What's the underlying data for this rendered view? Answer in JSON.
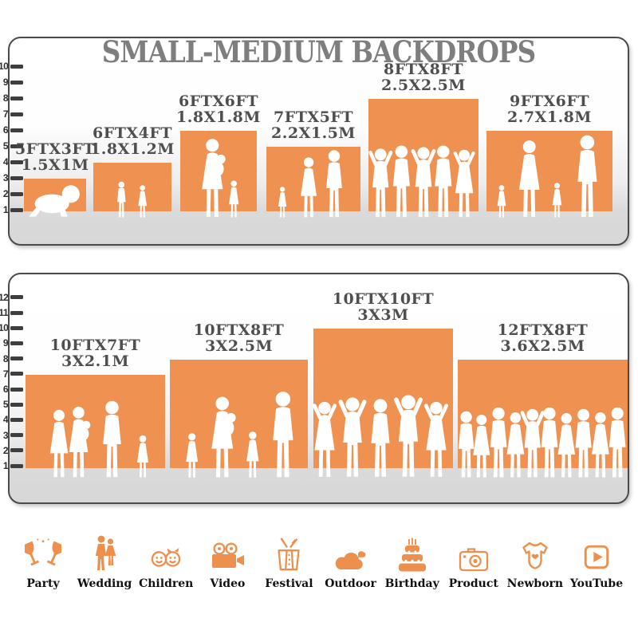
{
  "title": "SMALL-MEDIUM BACKDROPS",
  "colors": {
    "bar_orange": "#EF9251",
    "icon_orange": "#ED8F4D",
    "title_gray": "#7E7E7E",
    "bar_label_gray": "#4F4F4F",
    "tick_dark": "#3E3E3E",
    "panel_border": "#4A4A4A",
    "silhouette_white": "#FFFFFF"
  },
  "chart_data": [
    {
      "type": "bar",
      "panel": "top",
      "title": "SMALL-MEDIUM BACKDROPS",
      "ylim": [
        1,
        10
      ],
      "yticks": [
        1,
        2,
        3,
        4,
        5,
        6,
        7,
        8,
        9,
        10
      ],
      "grid": false,
      "legend": null,
      "categories": [
        "5FTX3FT",
        "6FTX4FT",
        "6FTX6FT",
        "7FTX5FT",
        "8FTX8FT",
        "9FTX6FT"
      ],
      "values": [
        3,
        4,
        6,
        5,
        8,
        6
      ],
      "bars": [
        {
          "size_ft": "5FTX3FT",
          "size_m": "1.5X1M",
          "width_ft": 5,
          "height_ft": 3,
          "scene": "crawling-baby"
        },
        {
          "size_ft": "6FTX4FT",
          "size_m": "1.8X1.2M",
          "width_ft": 6,
          "height_ft": 4,
          "scene": "two-children"
        },
        {
          "size_ft": "6FTX6FT",
          "size_m": "1.8X1.8M",
          "width_ft": 6,
          "height_ft": 6,
          "scene": "mother-and-child"
        },
        {
          "size_ft": "7FTX5FT",
          "size_m": "2.2X1.5M",
          "width_ft": 7,
          "height_ft": 5,
          "scene": "family-of-three"
        },
        {
          "size_ft": "8FTX8FT",
          "size_m": "2.5X2.5M",
          "width_ft": 8,
          "height_ft": 8,
          "scene": "group-of-five"
        },
        {
          "size_ft": "9FTX6FT",
          "size_m": "2.7X1.8M",
          "width_ft": 9,
          "height_ft": 6,
          "scene": "family-of-four"
        }
      ]
    },
    {
      "type": "bar",
      "panel": "bottom",
      "title": "",
      "ylim": [
        1,
        12
      ],
      "yticks": [
        1,
        2,
        3,
        4,
        5,
        6,
        7,
        8,
        9,
        10,
        11,
        12
      ],
      "grid": false,
      "legend": null,
      "categories": [
        "10FTX7FT",
        "10FTX8FT",
        "10FTX10FT",
        "12FTX8FT"
      ],
      "values": [
        7,
        8,
        10,
        8
      ],
      "bars": [
        {
          "size_ft": "10FTX7FT",
          "size_m": "3X2.1M",
          "width_ft": 10,
          "height_ft": 7,
          "scene": "family-with-baby"
        },
        {
          "size_ft": "10FTX8FT",
          "size_m": "3X2.5M",
          "width_ft": 10,
          "height_ft": 8,
          "scene": "family-holding-hands"
        },
        {
          "size_ft": "10FTX10FT",
          "size_m": "3X3M",
          "width_ft": 10,
          "height_ft": 10,
          "scene": "group-of-five-adults"
        },
        {
          "size_ft": "12FTX8FT",
          "size_m": "3.6X2.5M",
          "width_ft": 12,
          "height_ft": 8,
          "scene": "crowd"
        }
      ]
    }
  ],
  "categories_row": [
    {
      "label": "Party",
      "icon": "party-icon"
    },
    {
      "label": "Wedding",
      "icon": "wedding-icon"
    },
    {
      "label": "Children",
      "icon": "children-icon"
    },
    {
      "label": "Video",
      "icon": "video-icon"
    },
    {
      "label": "Festival",
      "icon": "festival-icon"
    },
    {
      "label": "Outdoor",
      "icon": "outdoor-icon"
    },
    {
      "label": "Birthday",
      "icon": "birthday-icon"
    },
    {
      "label": "Product",
      "icon": "product-icon"
    },
    {
      "label": "Newborn",
      "icon": "newborn-icon"
    },
    {
      "label": "YouTube",
      "icon": "youtube-icon"
    }
  ]
}
